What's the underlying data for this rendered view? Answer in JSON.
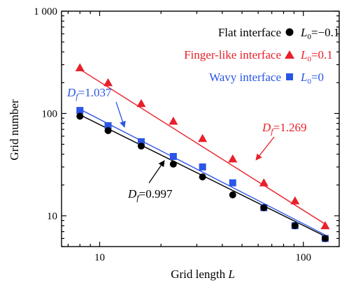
{
  "chart_data": {
    "type": "scatter",
    "xscale": "log",
    "yscale": "log",
    "xlim": [
      6.5,
      150
    ],
    "ylim": [
      5,
      1000
    ],
    "xlabel": "Grid length ",
    "xlabel_italic": "L",
    "ylabel": "Grid number",
    "xticks": [
      {
        "value": 10,
        "label": "10"
      },
      {
        "value": 100,
        "label": "100"
      }
    ],
    "yticks": [
      {
        "value": 10,
        "label": "10"
      },
      {
        "value": 100,
        "label": "100"
      },
      {
        "value": 1000,
        "label": "1 000"
      }
    ],
    "grid": false,
    "legend_position": "top-right",
    "series": [
      {
        "name": "Flat interface",
        "legend_param_sub": "0",
        "legend_param_value": "=−0.1",
        "color": "#000000",
        "marker": "circle",
        "x": [
          8,
          11,
          16,
          23,
          32,
          45,
          64,
          91,
          128
        ],
        "y": [
          94,
          68,
          48,
          32,
          24,
          16,
          12,
          8,
          6
        ],
        "fit": {
          "x": [
            8,
            128
          ],
          "y": [
            97,
            6.3
          ]
        },
        "dimension_label": "D",
        "dimension_sub": "f",
        "dimension_value": "=0.997"
      },
      {
        "name": "Finger-like interface",
        "legend_param_sub": "0",
        "legend_param_value": "=0.1",
        "color": "#e8202a",
        "marker": "triangle",
        "x": [
          8,
          11,
          16,
          23,
          32,
          45,
          64,
          91,
          128
        ],
        "y": [
          280,
          200,
          125,
          84,
          57,
          36,
          21,
          14,
          8
        ],
        "fit": {
          "x": [
            8,
            128
          ],
          "y": [
            270,
            8.3
          ]
        },
        "dimension_label": "D",
        "dimension_sub": "f",
        "dimension_value": "=1.269"
      },
      {
        "name": "Wavy interface",
        "legend_param_sub": "0",
        "legend_param_value": "=0",
        "color": "#2b55e6",
        "marker": "square",
        "x": [
          8,
          11,
          16,
          23,
          32,
          45,
          64,
          91,
          128
        ],
        "y": [
          107,
          76,
          53,
          38,
          30,
          21,
          12,
          8,
          6
        ],
        "fit": {
          "x": [
            8,
            128
          ],
          "y": [
            110,
            6.5
          ]
        },
        "dimension_label": "D",
        "dimension_sub": "f",
        "dimension_value": "=1.037"
      }
    ]
  }
}
